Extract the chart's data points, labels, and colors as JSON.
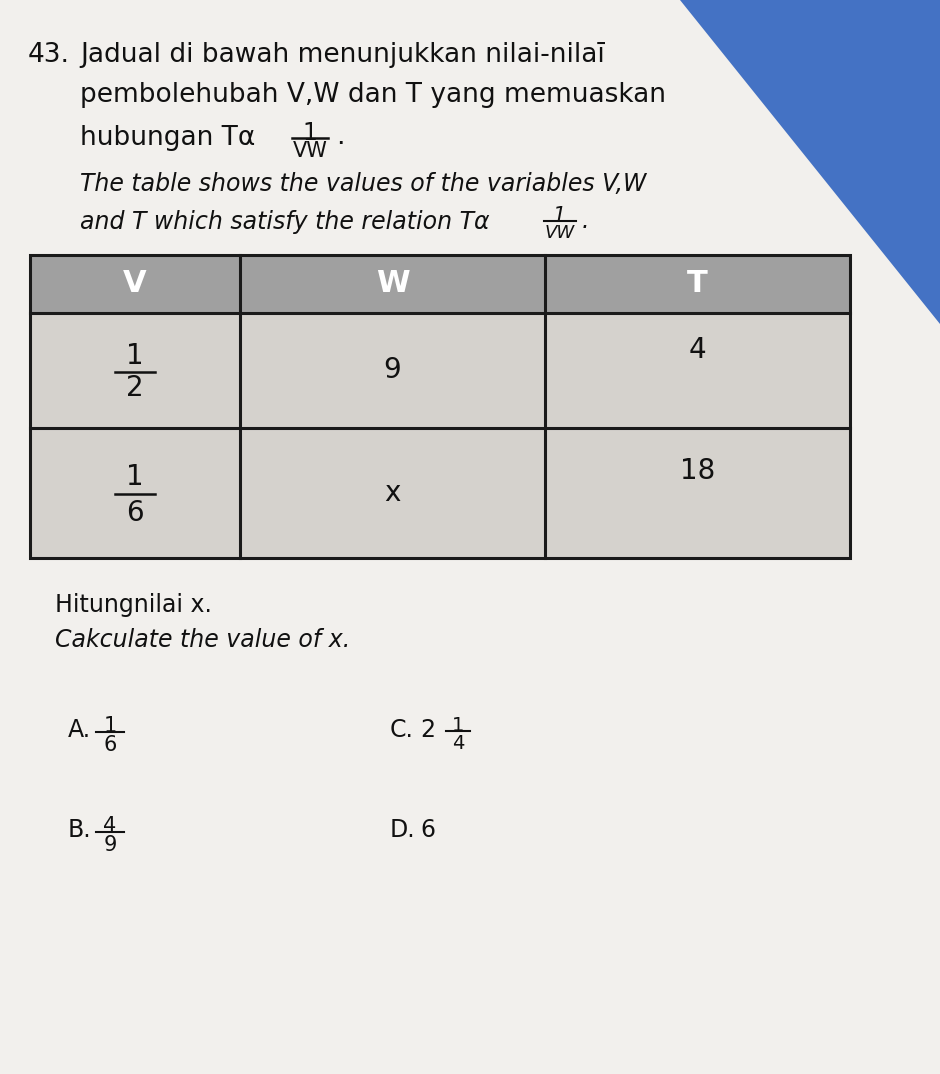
{
  "question_number": "43.",
  "text_line1": "Jadual di bawah menunjukkan nilai-nilaī",
  "text_line2": "pembolehubah V,W dan T yang memuaskan",
  "text_line3_main": "hubungan Tα",
  "text_line4": "The table shows the values of the variables V,W",
  "text_line5": "and T which satisfy the relation Tα",
  "col_headers": [
    "V",
    "W",
    "T"
  ],
  "row1_v_num": "1",
  "row1_v_den": "2",
  "row1_w": "9",
  "row1_t": "4",
  "row2_v_num": "1",
  "row2_v_den": "6",
  "row2_w": "x",
  "row2_t": "18",
  "instr1": "Hitungnilai x.",
  "instr2": "Cakculate the value of x.",
  "optA_label": "A.",
  "optA_num": "1",
  "optA_den": "6",
  "optC_label": "C.",
  "optC_whole": "2",
  "optC_num": "1",
  "optC_den": "4",
  "optB_label": "B.",
  "optB_num": "4",
  "optB_den": "9",
  "optD_label": "D.",
  "optD_val": "6",
  "bg_color": "#f2f0ed",
  "blue_corner": "#4472c4",
  "header_bg": "#a0a0a0",
  "data_row_bg": "#d5d2cd",
  "border_color": "#1a1a1a",
  "text_color": "#111111"
}
